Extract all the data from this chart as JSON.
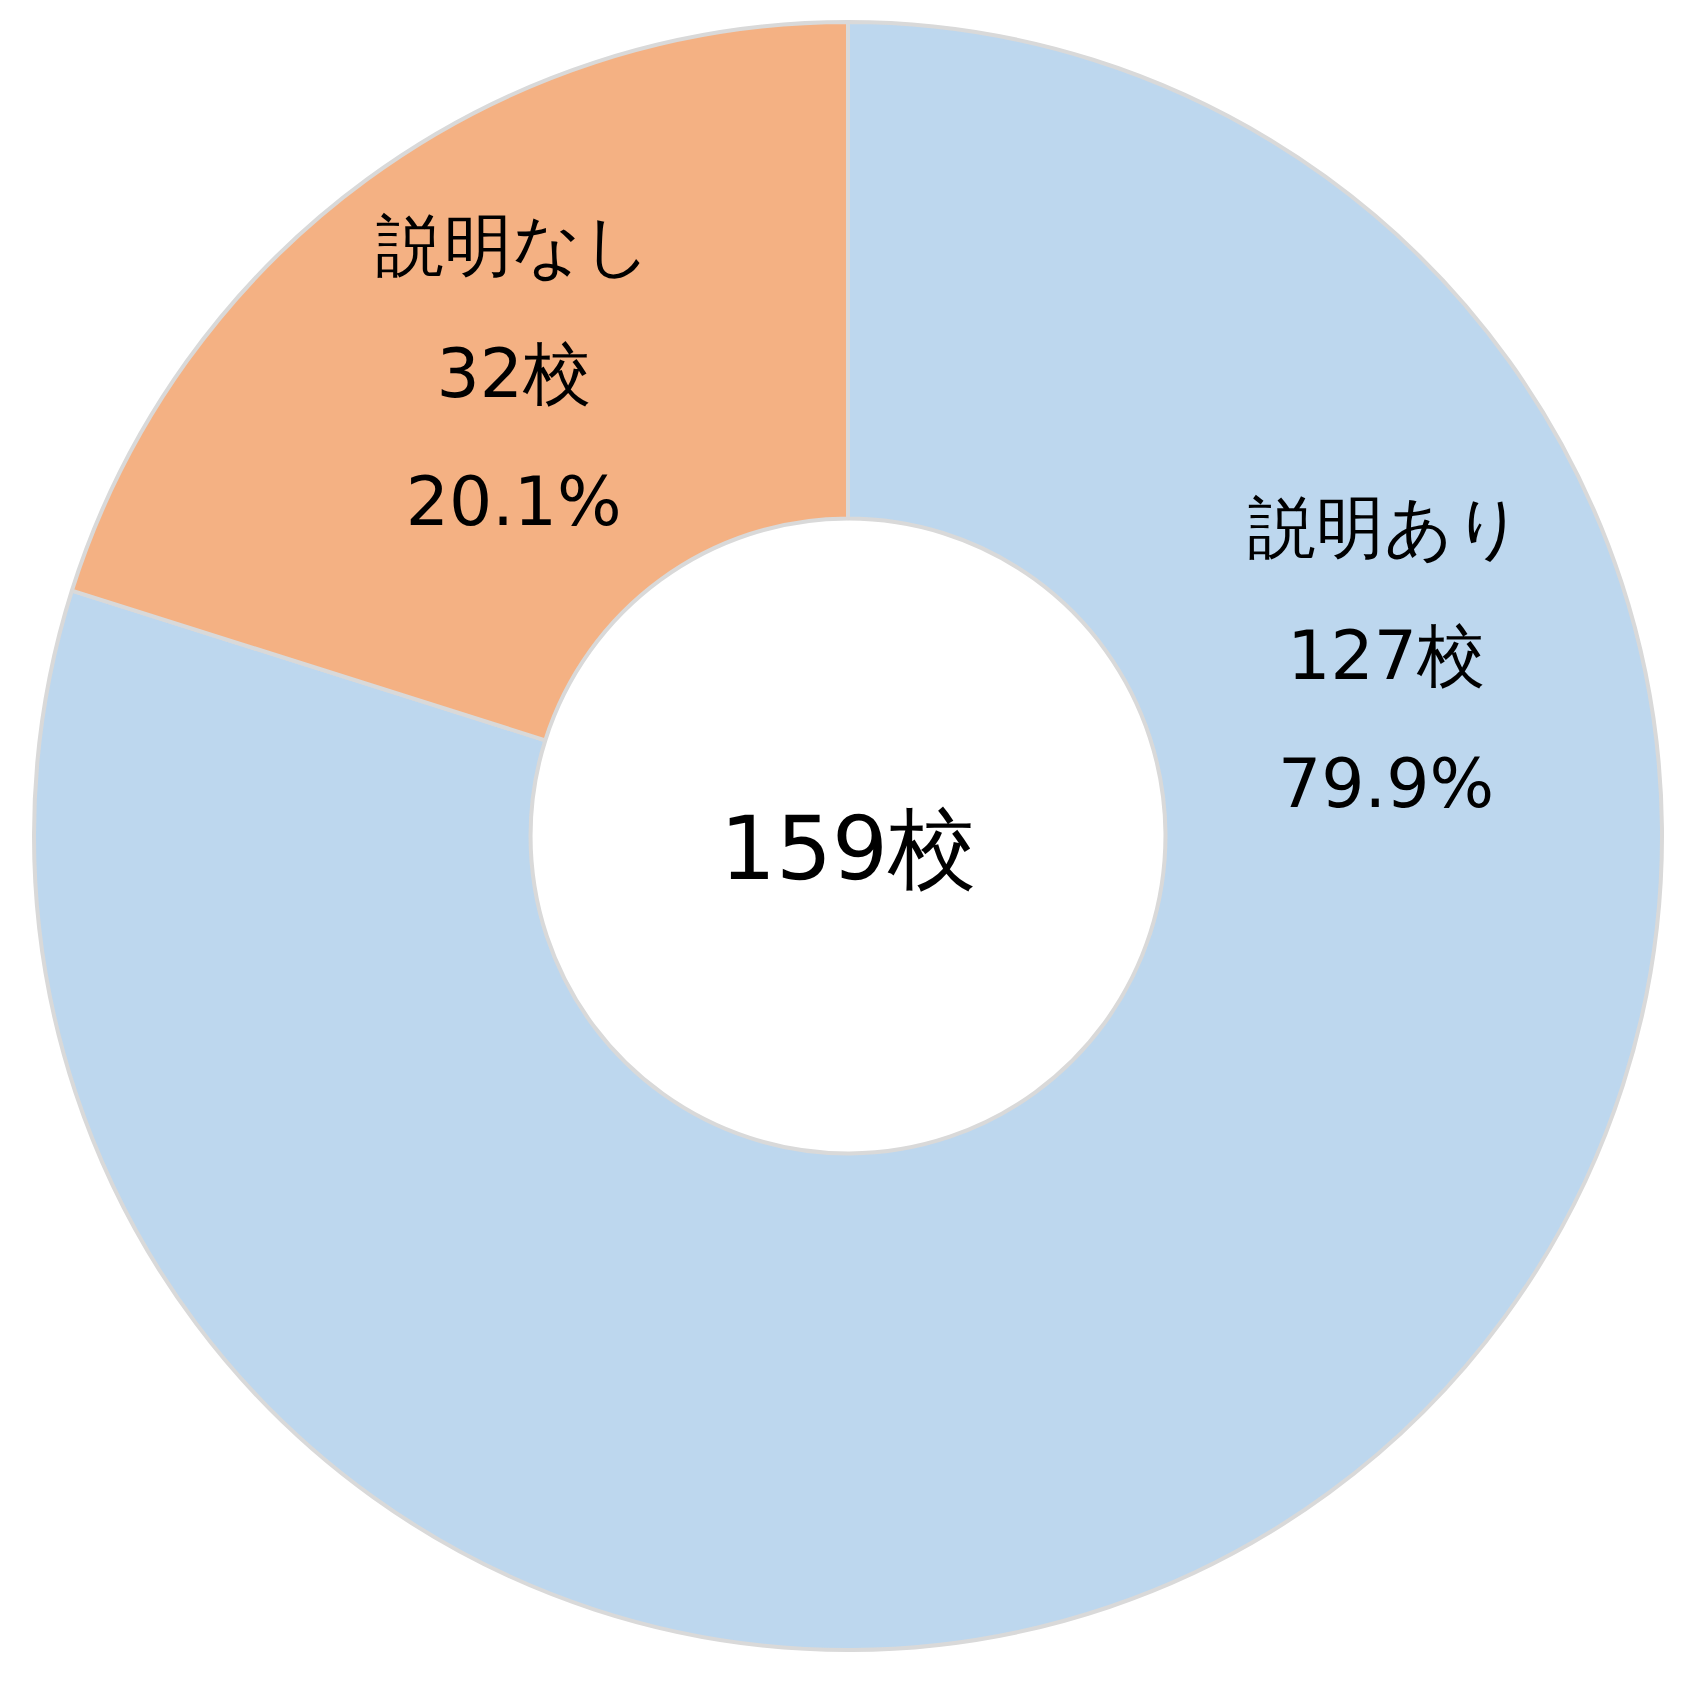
{
  "chart_data": {
    "type": "donut",
    "categories": [
      "説明あり",
      "説明なし"
    ],
    "values": [
      127,
      32
    ],
    "colors": [
      "#bdd7ee",
      "#f4b183"
    ],
    "value_labels": [
      "127校\n79.9%",
      "32校\n20.1%"
    ],
    "annotations": [
      "159校"
    ],
    "legend": false
  }
}
